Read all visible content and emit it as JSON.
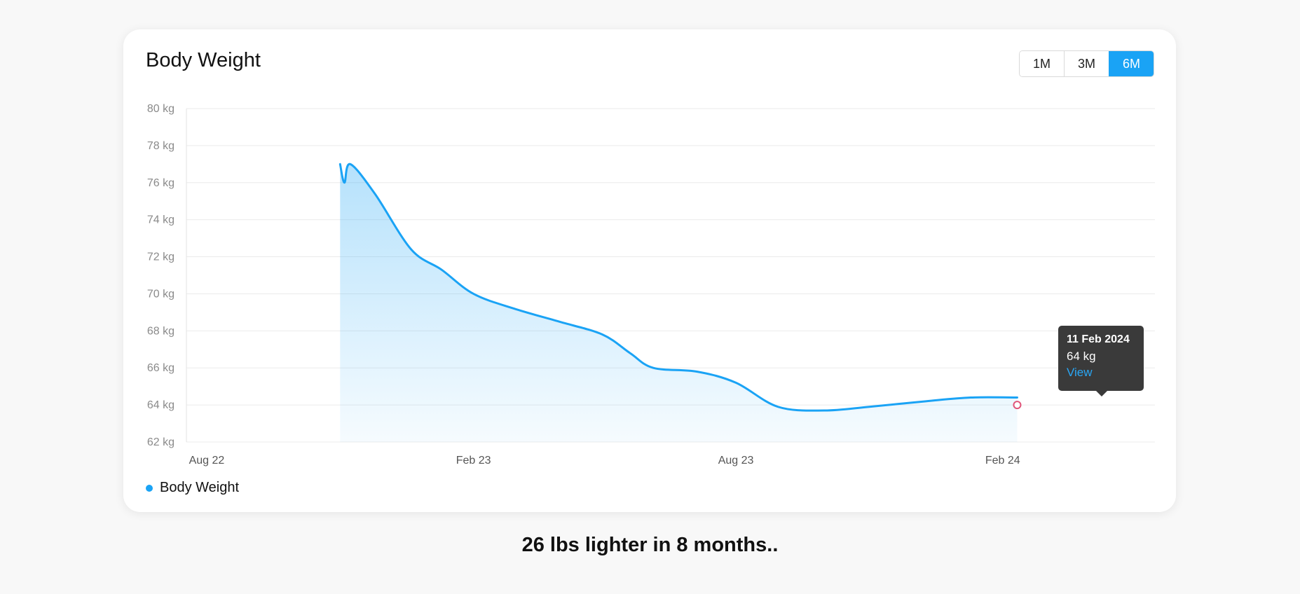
{
  "card": {
    "title": "Body Weight",
    "ranges": [
      "1M",
      "3M",
      "6M"
    ],
    "active_range": "6M"
  },
  "tooltip": {
    "date": "11 Feb 2024",
    "value": "64 kg",
    "link": "View"
  },
  "legend": {
    "label": "Body Weight"
  },
  "caption": "26 lbs lighter in 8 months..",
  "colors": {
    "accent": "#1aa3f5",
    "marker": "#e0557a"
  },
  "chart_data": {
    "type": "area",
    "title": "Body Weight",
    "xlabel": "",
    "ylabel": "",
    "ylim": [
      62,
      80
    ],
    "yticks": [
      80,
      78,
      76,
      74,
      72,
      70,
      68,
      66,
      64,
      62
    ],
    "ytick_unit": "kg",
    "xticks": [
      {
        "label": "Aug 22",
        "date": "2022-08-01"
      },
      {
        "label": "Feb 23",
        "date": "2023-02-01"
      },
      {
        "label": "Aug 23",
        "date": "2023-08-01"
      },
      {
        "label": "Feb 24",
        "date": "2024-02-01"
      }
    ],
    "xlim": [
      "2022-07-18",
      "2024-05-16"
    ],
    "grid": true,
    "legend_position": "bottom-left",
    "series": [
      {
        "name": "Body Weight",
        "color": "#1aa3f5",
        "points": [
          {
            "date": "2022-11-01",
            "value": 77.0
          },
          {
            "date": "2022-11-04",
            "value": 76.0
          },
          {
            "date": "2022-11-08",
            "value": 77.0
          },
          {
            "date": "2022-11-25",
            "value": 75.4
          },
          {
            "date": "2022-12-20",
            "value": 72.4
          },
          {
            "date": "2023-01-10",
            "value": 71.3
          },
          {
            "date": "2023-02-01",
            "value": 70.0
          },
          {
            "date": "2023-03-01",
            "value": 69.2
          },
          {
            "date": "2023-04-01",
            "value": 68.5
          },
          {
            "date": "2023-05-01",
            "value": 67.8
          },
          {
            "date": "2023-05-20",
            "value": 66.8
          },
          {
            "date": "2023-06-05",
            "value": 66.0
          },
          {
            "date": "2023-07-05",
            "value": 65.8
          },
          {
            "date": "2023-08-01",
            "value": 65.2
          },
          {
            "date": "2023-08-30",
            "value": 63.9
          },
          {
            "date": "2023-10-01",
            "value": 63.7
          },
          {
            "date": "2023-11-01",
            "value": 63.9
          },
          {
            "date": "2023-12-10",
            "value": 64.2
          },
          {
            "date": "2024-01-10",
            "value": 64.4
          },
          {
            "date": "2024-02-11",
            "value": 64.4
          }
        ]
      }
    ],
    "highlight": {
      "date": "2024-02-11",
      "value": 64
    }
  }
}
